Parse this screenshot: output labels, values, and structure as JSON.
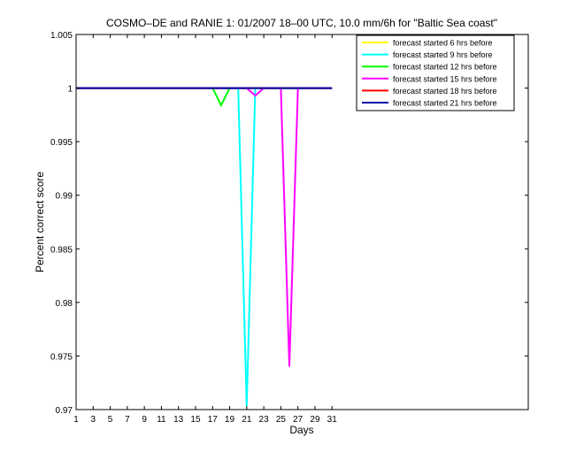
{
  "chart_data": {
    "type": "line",
    "title": "COSMO–DE and RANIE 1: 01/2007 18–00 UTC, 10.0 mm/6h for \"Baltic Sea coast\"",
    "xlabel": "Days",
    "ylabel": "Percent correct score",
    "xlim": [
      1,
      54
    ],
    "ylim": [
      0.97,
      1.005
    ],
    "x_ticks": [
      1,
      3,
      5,
      7,
      9,
      11,
      13,
      15,
      17,
      19,
      21,
      23,
      25,
      27,
      29,
      31
    ],
    "y_ticks": [
      0.97,
      0.975,
      0.98,
      0.985,
      0.99,
      0.995,
      1,
      1.005
    ],
    "y_tick_labels": [
      "0.97",
      "0.975",
      "0.98",
      "0.985",
      "0.99",
      "0.995",
      "1",
      "1.005"
    ],
    "legend_position": "top-right",
    "grid": false,
    "series": [
      {
        "name": "forecast started 6 hrs before",
        "color": "#ffff00",
        "x": [
          1,
          31
        ],
        "y": [
          1,
          1
        ]
      },
      {
        "name": "forecast started 9 hrs before",
        "color": "#00ffff",
        "x": [
          1,
          19,
          20,
          21,
          22,
          23,
          31
        ],
        "y": [
          1,
          1,
          1,
          0.9703,
          1,
          1,
          1
        ]
      },
      {
        "name": "forecast started 12 hrs before",
        "color": "#00ff00",
        "x": [
          1,
          17,
          18,
          19,
          31
        ],
        "y": [
          1,
          1,
          0.9984,
          1,
          1
        ]
      },
      {
        "name": "forecast started 15 hrs before",
        "color": "#ff00ff",
        "x": [
          1,
          21,
          22,
          23,
          25,
          26,
          27,
          31
        ],
        "y": [
          1,
          1,
          0.9993,
          1,
          1,
          0.974,
          1,
          1
        ]
      },
      {
        "name": "forecast started 18 hrs before",
        "color": "#ff0000",
        "x": [
          1,
          31
        ],
        "y": [
          1,
          1
        ]
      },
      {
        "name": "forecast started 21 hrs before",
        "color": "#0000aa",
        "x": [
          1,
          31
        ],
        "y": [
          1,
          1
        ]
      }
    ]
  }
}
